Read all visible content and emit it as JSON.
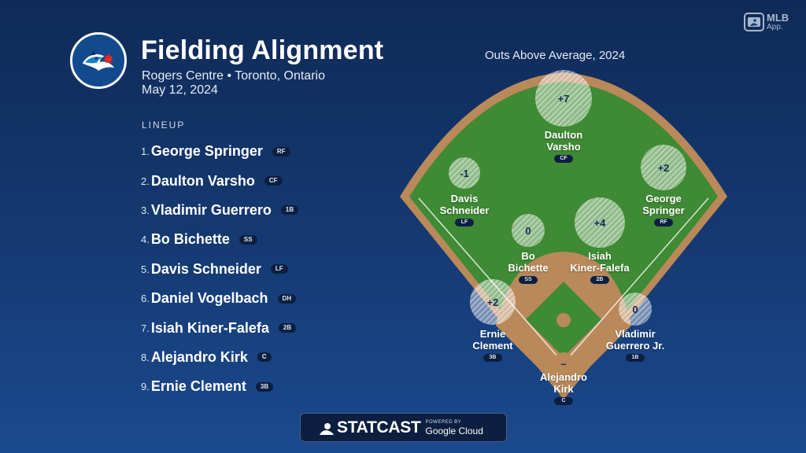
{
  "header": {
    "title": "Fielding Alignment",
    "venue": "Rogers Centre • Toronto, Ontario",
    "date": "May 12, 2024",
    "team_logo_icon": "blue-jays-logo"
  },
  "brand": {
    "mlb_app_title": "MLB",
    "mlb_app_sub": "App."
  },
  "lineup": {
    "heading": "LINEUP",
    "players": [
      {
        "num": "1.",
        "name": "George Springer",
        "pos": "RF"
      },
      {
        "num": "2.",
        "name": "Daulton Varsho",
        "pos": "CF"
      },
      {
        "num": "3.",
        "name": "Vladimir Guerrero",
        "pos": "1B"
      },
      {
        "num": "4.",
        "name": "Bo Bichette",
        "pos": "SS"
      },
      {
        "num": "5.",
        "name": "Davis Schneider",
        "pos": "LF"
      },
      {
        "num": "6.",
        "name": "Daniel Vogelbach",
        "pos": "DH"
      },
      {
        "num": "7.",
        "name": "Isiah Kiner-Falefa",
        "pos": "2B"
      },
      {
        "num": "8.",
        "name": "Alejandro Kirk",
        "pos": "C"
      },
      {
        "num": "9.",
        "name": "Ernie Clement",
        "pos": "3B"
      }
    ]
  },
  "field": {
    "title": "Outs Above Average, 2024",
    "colors": {
      "grass": "#3f8a34",
      "dirt": "#b9895a",
      "background": "#153a73"
    },
    "players": [
      {
        "id": "cf",
        "name_line1": "Daulton",
        "name_line2": "Varsho",
        "pos": "CF",
        "oaa": "+7"
      },
      {
        "id": "lf",
        "name_line1": "Davis",
        "name_line2": "Schneider",
        "pos": "LF",
        "oaa": "-1"
      },
      {
        "id": "rf",
        "name_line1": "George",
        "name_line2": "Springer",
        "pos": "RF",
        "oaa": "+2"
      },
      {
        "id": "ss",
        "name_line1": "Bo",
        "name_line2": "Bichette",
        "pos": "SS",
        "oaa": "0"
      },
      {
        "id": "2b",
        "name_line1": "Isiah",
        "name_line2": "Kiner-Falefa",
        "pos": "2B",
        "oaa": "+4"
      },
      {
        "id": "3b",
        "name_line1": "Ernie",
        "name_line2": "Clement",
        "pos": "3B",
        "oaa": "+2"
      },
      {
        "id": "1b",
        "name_line1": "Vladimir",
        "name_line2": "Guerrero Jr.",
        "pos": "1B",
        "oaa": "0"
      },
      {
        "id": "c",
        "name_line1": "Alejandro",
        "name_line2": "Kirk",
        "pos": "C",
        "oaa": "–"
      }
    ]
  },
  "footer": {
    "statcast": "STATCAST",
    "powered_by": "POWERED BY",
    "google_cloud": "Google Cloud"
  }
}
